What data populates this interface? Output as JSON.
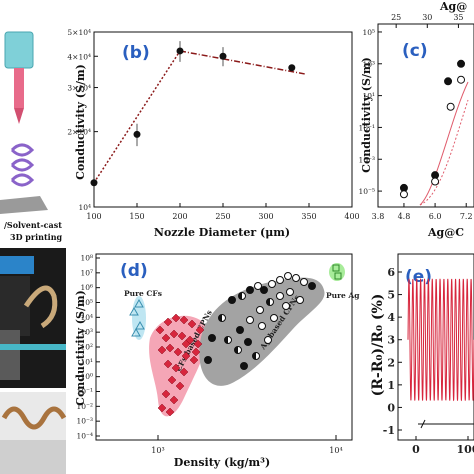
{
  "figure_labels": {
    "left_caption_line1": "/Solvent-cast",
    "left_caption_line2": "3D printing"
  },
  "chart_data": [
    {
      "id": "b",
      "panel_label": "(b)",
      "type": "scatter",
      "xlabel": "Nozzle Diameter (μm)",
      "ylabel": "Conductivity (S/m)",
      "x_ticks": [
        "100",
        "150",
        "200",
        "250",
        "300",
        "350",
        "400"
      ],
      "y_ticks": [
        "10⁴",
        "2×10⁴",
        "3×10⁴",
        "4×10⁴",
        "5×10⁴"
      ],
      "xlim": [
        100,
        400
      ],
      "ylim": [
        10000,
        50000
      ],
      "y_scale": "log",
      "points": [
        {
          "x": 100,
          "y": 12500
        },
        {
          "x": 150,
          "y": 19500,
          "err": 2000
        },
        {
          "x": 200,
          "y": 42000,
          "err": 4000
        },
        {
          "x": 250,
          "y": 40000,
          "err": 3500
        },
        {
          "x": 330,
          "y": 36000
        }
      ],
      "trend": [
        {
          "style": "dotted",
          "color": "#8b1a1a",
          "from": [
            100,
            12500
          ],
          "to": [
            200,
            42000
          ]
        },
        {
          "style": "dash-dot",
          "color": "#8b1a1a",
          "from": [
            200,
            42000
          ],
          "to": [
            345,
            34000
          ]
        }
      ]
    },
    {
      "id": "c",
      "panel_label": "(c)",
      "type": "scatter",
      "xlabel": "Ag@C",
      "ylabel": "Conductivity (S/m)",
      "top_axis_label": "Ag@",
      "x_ticks": [
        "3.8",
        "4.8",
        "6.0",
        "7.2"
      ],
      "top_ticks": [
        "25",
        "30",
        "35"
      ],
      "y_ticks": [
        "10⁻⁵",
        "10⁻³",
        "10⁻¹",
        "10¹",
        "10³",
        "10⁵"
      ],
      "y_scale": "log",
      "series": [
        {
          "name": "",
          "marker": "filled-circle",
          "points": [
            {
              "x": 4.8,
              "y": -4.8
            },
            {
              "x": 6.0,
              "y": -4.0
            },
            {
              "x": 6.5,
              "y": 1.9
            },
            {
              "x": 7.0,
              "y": 3.0
            }
          ]
        },
        {
          "name": "",
          "marker": "open-circle",
          "points": [
            {
              "x": 4.8,
              "y": -5.2
            },
            {
              "x": 6.0,
              "y": -4.4
            },
            {
              "x": 6.6,
              "y": 0.3
            },
            {
              "x": 7.0,
              "y": 2.0
            }
          ]
        }
      ]
    },
    {
      "id": "d",
      "panel_label": "(d)",
      "type": "scatter",
      "xlabel": "Density (kg/m³)",
      "ylabel": "Conductivity (S/m)",
      "x_ticks": [
        "10³",
        "10⁴"
      ],
      "y_ticks": [
        "10⁻⁴",
        "10⁻³",
        "10⁻²",
        "10⁻¹",
        "10⁰",
        "10¹",
        "10²",
        "10³",
        "10⁴",
        "10⁵",
        "10⁶",
        "10⁷",
        "10⁸"
      ],
      "x_scale": "log",
      "y_scale": "log",
      "annotations": [
        "Pure CFs",
        "Pure Ag",
        "CFs-based CPNs",
        "Ag-based CPNs"
      ],
      "colors": {
        "pure_cfs": "#7ec8e3",
        "pure_ag": "#7ddc6f",
        "cfs_cpns": "#f28aa0",
        "ag_cpns": "#9e9e9e",
        "diamond": "#d7263d"
      }
    },
    {
      "id": "e",
      "panel_label": "(e)",
      "type": "line",
      "ylabel": "(R-R₀)/R₀ (%)",
      "x_ticks": [
        "0",
        "100"
      ],
      "y_ticks": [
        "-1",
        "0",
        "1",
        "2",
        "3",
        "4",
        "5",
        "6"
      ],
      "ylim": [
        -1,
        6
      ],
      "line_color": "#d7263d",
      "oscillation": {
        "min": 0.3,
        "max": 5.7,
        "cycles": 17
      }
    }
  ]
}
